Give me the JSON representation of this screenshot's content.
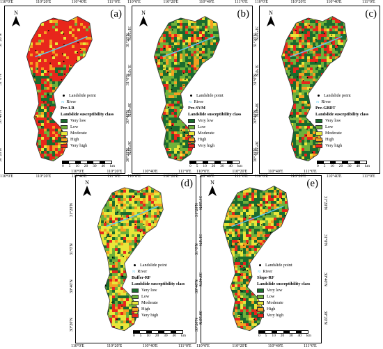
{
  "panels": [
    {
      "id": "a",
      "label": "(a)",
      "model": "Pre-LR",
      "palette": "lr",
      "top_ticks": [
        "110°0'E",
        "110°20'E",
        "110°40'E",
        "111°0'E"
      ],
      "bottom_ticks": [
        "110°0'E",
        "110°20'E",
        "110°40'E",
        "111°0'E"
      ]
    },
    {
      "id": "b",
      "label": "(b)",
      "model": "Pre-SVM",
      "palette": "svm",
      "top_ticks": [
        "110°0'E",
        "110°20'E",
        "110°40'E",
        "111°0'E"
      ],
      "bottom_ticks": [
        "110°0'E",
        "110°20'E",
        "110°40'E",
        "111°0'E"
      ]
    },
    {
      "id": "c",
      "label": "(c)",
      "model": "Pre-GBDT",
      "palette": "gbdt",
      "top_ticks": [
        "110°0'E",
        "110°20'E",
        "110°40'E",
        "111°0'E"
      ],
      "bottom_ticks": [
        "110°0'E",
        "110°20'E",
        "110°40'E",
        "111°0'E"
      ]
    },
    {
      "id": "d",
      "label": "(d)",
      "model": "Buffer-RF",
      "palette": "buffer",
      "top_ticks": [
        "110°0'E",
        "110°20'E",
        "110°40'E",
        "111°0'E"
      ],
      "bottom_ticks": [
        "110°0'E",
        "110°20'E",
        "110°40'E",
        "111°0'E"
      ]
    },
    {
      "id": "e",
      "label": "(e)",
      "model": "Slope-RF",
      "palette": "slope",
      "top_ticks": [
        "110°0'E",
        "110°20'E",
        "110°40'E",
        "111°0'E"
      ],
      "bottom_ticks": [
        "110°0'E",
        "110°20'E",
        "110°40'E",
        "111°0'E"
      ]
    }
  ],
  "lat_ticks": [
    "31°20'N",
    "31°0'N",
    "30°40'N",
    "30°20'N"
  ],
  "north": "N",
  "legend": {
    "point": "Landslide point",
    "river": "River",
    "class_title": "Landslide susceptibility class",
    "classes": [
      {
        "name": "Very low",
        "color": "#1a6b2e"
      },
      {
        "name": "Low",
        "color": "#6fb13a"
      },
      {
        "name": "Moderate",
        "color": "#e8e63a"
      },
      {
        "name": "High",
        "color": "#f5a021"
      },
      {
        "name": "Very high",
        "color": "#e8261c"
      }
    ]
  },
  "scalebar": {
    "labels": [
      "0",
      "5",
      "10",
      "20",
      "30",
      "40"
    ],
    "unit": "km"
  }
}
